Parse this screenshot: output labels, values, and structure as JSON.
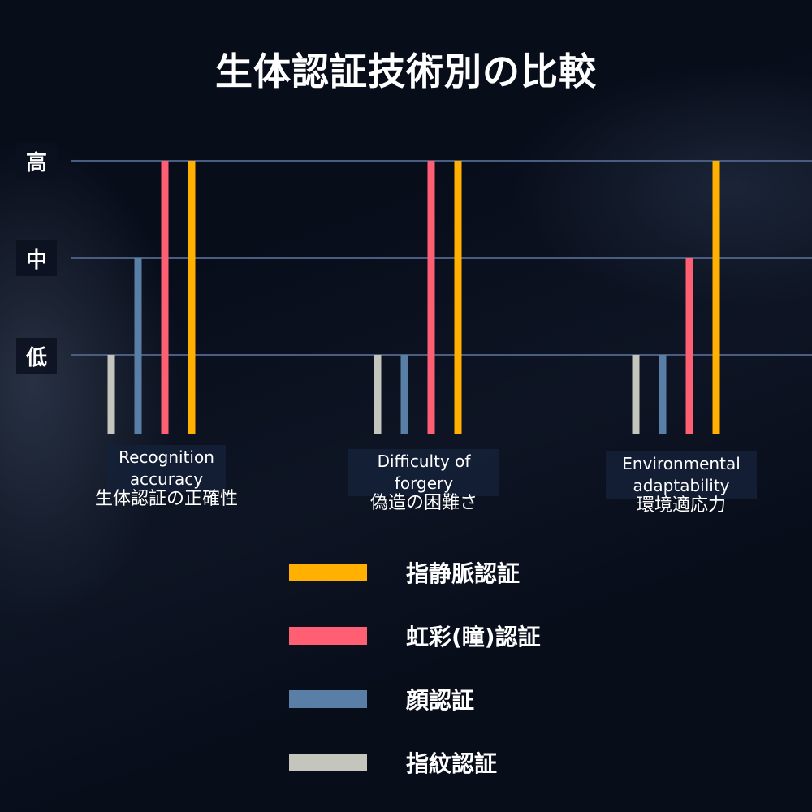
{
  "title": "生体認証技術別の比較",
  "chart_data": {
    "type": "bar",
    "title": "生体認証技術別の比較",
    "y_levels": [
      "低",
      "中",
      "高"
    ],
    "ylim": [
      0,
      3
    ],
    "grid": true,
    "legend_position": "bottom",
    "categories": [
      {
        "en": "Recognition accuracy",
        "ja": "生体認証の正確性"
      },
      {
        "en": "Difficulty of forgery",
        "ja": "偽造の困難さ"
      },
      {
        "en": "Environmental adaptability",
        "ja": "環境適応力"
      }
    ],
    "series": [
      {
        "name": "指紋認証",
        "color": "#c4c5bc",
        "values": [
          1,
          1,
          1
        ]
      },
      {
        "name": "顔認証",
        "color": "#5a7fa6",
        "values": [
          2,
          1,
          1
        ]
      },
      {
        "name": "虹彩(瞳)認証",
        "color": "#ff5f73",
        "values": [
          3,
          3,
          2
        ]
      },
      {
        "name": "指静脈認証",
        "color": "#ffb000",
        "values": [
          3,
          3,
          3
        ]
      }
    ],
    "legend_order": [
      "指静脈認証",
      "虹彩(瞳)認証",
      "顔認証",
      "指紋認証"
    ]
  }
}
